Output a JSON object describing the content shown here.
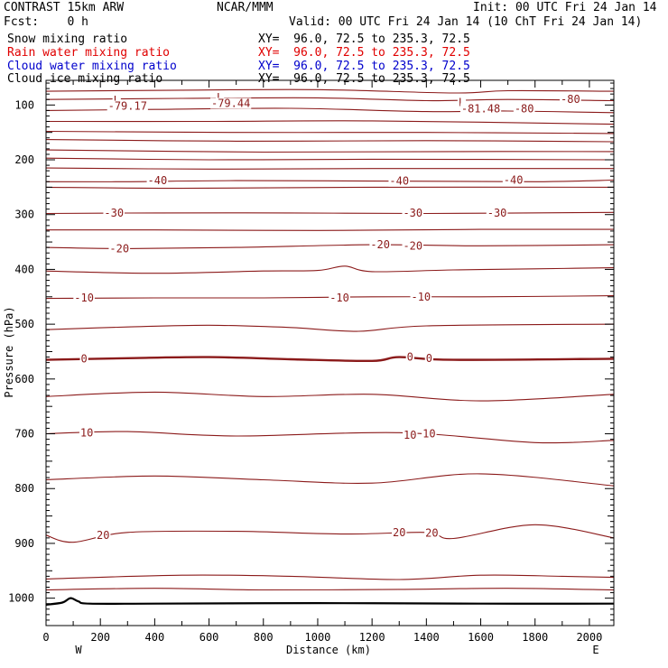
{
  "header": {
    "model": "CONTRAST 15km ARW",
    "org": "NCAR/MMM",
    "init": "Init: 00 UTC Fri 24 Jan 14",
    "fcst": "Fcst:    0 h",
    "valid": "Valid: 00 UTC Fri 24 Jan 14 (10 ChT Fri 24 Jan 14)"
  },
  "legend": [
    {
      "name": "Snow mixing ratio",
      "xy": "XY=  96.0, 72.5 to 235.3, 72.5",
      "color": "#000000"
    },
    {
      "name": "Rain water mixing ratio",
      "xy": "XY=  96.0, 72.5 to 235.3, 72.5",
      "color": "#e00000"
    },
    {
      "name": "Cloud water mixing ratio",
      "xy": "XY=  96.0, 72.5 to 235.3, 72.5",
      "color": "#0000cc"
    },
    {
      "name": "Cloud ice mixing ratio",
      "xy": "XY=  96.0, 72.5 to 235.3, 72.5",
      "color": "#000000"
    }
  ],
  "chart_data": {
    "type": "line",
    "description_kind": "cross-section temperature contours",
    "xlabel": "Distance (km)",
    "ylabel": "Pressure (hPa)",
    "xlim": [
      0,
      2090
    ],
    "ylim": [
      1050,
      55
    ],
    "x_ticks": [
      "0",
      "200",
      "400",
      "600",
      "800",
      "1000",
      "1200",
      "1400",
      "1600",
      "1800",
      "2000"
    ],
    "x_tick_values": [
      0,
      200,
      400,
      600,
      800,
      1000,
      1200,
      1400,
      1600,
      1800,
      2000
    ],
    "y_ticks": [
      "100",
      "200",
      "300",
      "400",
      "500",
      "600",
      "700",
      "800",
      "900",
      "1000"
    ],
    "y_tick_values": [
      100,
      200,
      300,
      400,
      500,
      600,
      700,
      800,
      900,
      1000
    ],
    "endpoint_left": "W",
    "endpoint_right": "E",
    "contour_color": "#8b1a1a",
    "ground_color": "#000000",
    "contours": [
      {
        "level": -80,
        "x": [
          0,
          500,
          1000,
          1500,
          1700,
          2090
        ],
        "p": [
          75,
          73,
          72,
          78,
          74,
          75
        ]
      },
      {
        "level": -80,
        "x": [
          0,
          500,
          1000,
          1400,
          1700,
          2090
        ],
        "p": [
          90,
          88,
          87,
          92,
          90,
          92
        ]
      },
      {
        "level": -80,
        "x": [
          0,
          400,
          900,
          1400,
          1700,
          2090
        ],
        "p": [
          110,
          108,
          106,
          112,
          111,
          114
        ]
      },
      {
        "level": -70,
        "x": [
          0,
          600,
          1200,
          2090
        ],
        "p": [
          130,
          130,
          129,
          135
        ]
      },
      {
        "level": -60,
        "x": [
          0,
          700,
          1400,
          2090
        ],
        "p": [
          148,
          150,
          150,
          152
        ]
      },
      {
        "level": -60,
        "x": [
          0,
          700,
          1400,
          2090
        ],
        "p": [
          163,
          166,
          165,
          167
        ]
      },
      {
        "level": -60,
        "x": [
          0,
          800,
          1500,
          2090
        ],
        "p": [
          182,
          186,
          185,
          185
        ]
      },
      {
        "level": -50,
        "x": [
          0,
          600,
          1200,
          2090
        ],
        "p": [
          197,
          200,
          199,
          200
        ]
      },
      {
        "level": -50,
        "x": [
          0,
          600,
          1200,
          2090
        ],
        "p": [
          215,
          217,
          216,
          216
        ]
      },
      {
        "level": -40,
        "x": [
          0,
          300,
          700,
          1300,
          1800,
          2090
        ],
        "p": [
          240,
          240,
          238,
          239,
          240,
          237
        ]
      },
      {
        "level": -40,
        "x": [
          0,
          500,
          1200,
          2090
        ],
        "p": [
          250,
          252,
          250,
          250
        ]
      },
      {
        "level": -30,
        "x": [
          0,
          400,
          900,
          1400,
          2090
        ],
        "p": [
          298,
          297,
          297,
          298,
          296
        ]
      },
      {
        "level": -30,
        "x": [
          0,
          400,
          1000,
          1600,
          2090
        ],
        "p": [
          328,
          328,
          329,
          327,
          327
        ]
      },
      {
        "level": -20,
        "x": [
          0,
          300,
          700,
          1200,
          1600,
          2090
        ],
        "p": [
          360,
          362,
          360,
          355,
          357,
          355
        ]
      },
      {
        "level": -20,
        "x": [
          0,
          400,
          800,
          1000,
          1100,
          1200,
          1500,
          1800,
          2090
        ],
        "p": [
          403,
          407,
          403,
          402,
          394,
          404,
          401,
          399,
          397
        ]
      },
      {
        "level": -10,
        "x": [
          0,
          400,
          800,
          1200,
          1600,
          2090
        ],
        "p": [
          453,
          452,
          452,
          450,
          450,
          448
        ]
      },
      {
        "level": -10,
        "x": [
          0,
          300,
          600,
          900,
          1150,
          1400,
          2090
        ],
        "p": [
          510,
          505,
          502,
          506,
          513,
          503,
          500
        ]
      },
      {
        "level": 0,
        "x": [
          0,
          300,
          600,
          900,
          1200,
          1300,
          1500,
          2090
        ],
        "p": [
          565,
          562,
          560,
          564,
          567,
          560,
          565,
          563
        ],
        "bold": true
      },
      {
        "level": 0,
        "x": [
          0,
          400,
          800,
          1200,
          1600,
          2090
        ],
        "p": [
          632,
          624,
          632,
          628,
          640,
          628
        ]
      },
      {
        "level": 10,
        "x": [
          0,
          300,
          700,
          1300,
          1800,
          2090
        ],
        "p": [
          700,
          696,
          704,
          698,
          716,
          712
        ]
      },
      {
        "level": 10,
        "x": [
          0,
          400,
          800,
          1200,
          1600,
          2090
        ],
        "p": [
          784,
          777,
          784,
          790,
          773,
          795
        ]
      },
      {
        "level": 20,
        "x": [
          0,
          100,
          300,
          700,
          1100,
          1400,
          1500,
          1800,
          2090
        ],
        "p": [
          885,
          898,
          880,
          878,
          883,
          880,
          891,
          866,
          890
        ]
      },
      {
        "level": 20,
        "x": [
          0,
          500,
          900,
          1300,
          1600,
          1900,
          2090
        ],
        "p": [
          965,
          958,
          960,
          966,
          958,
          960,
          962
        ]
      },
      {
        "level": 25,
        "x": [
          0,
          400,
          800,
          1300,
          1700,
          2090
        ],
        "p": [
          985,
          982,
          985,
          984,
          982,
          985
        ]
      }
    ],
    "ground": {
      "x": [
        0,
        60,
        90,
        120,
        160,
        400,
        1000,
        1600,
        2090
      ],
      "p": [
        1012,
        1008,
        1000,
        1006,
        1010,
        1010,
        1009,
        1010,
        1010
      ]
    },
    "labels": [
      {
        "text": "L",
        "x": 260,
        "p": 91
      },
      {
        "text": "-79.17",
        "x": 300,
        "p": 102
      },
      {
        "text": "L",
        "x": 640,
        "p": 86
      },
      {
        "text": "-79.44",
        "x": 680,
        "p": 97
      },
      {
        "text": "L",
        "x": 1530,
        "p": 95
      },
      {
        "text": "-81.48",
        "x": 1600,
        "p": 107
      },
      {
        "text": "-80",
        "x": 1760,
        "p": 107
      },
      {
        "text": "-80",
        "x": 1930,
        "p": 90
      },
      {
        "text": "-40",
        "x": 410,
        "p": 238
      },
      {
        "text": "-40",
        "x": 1300,
        "p": 239
      },
      {
        "text": "-40",
        "x": 1720,
        "p": 237
      },
      {
        "text": "-30",
        "x": 250,
        "p": 297
      },
      {
        "text": "-30",
        "x": 1350,
        "p": 297
      },
      {
        "text": "-30",
        "x": 1660,
        "p": 297
      },
      {
        "text": "-20",
        "x": 270,
        "p": 362
      },
      {
        "text": "-20",
        "x": 1230,
        "p": 355
      },
      {
        "text": "-20",
        "x": 1350,
        "p": 357
      },
      {
        "text": "-10",
        "x": 140,
        "p": 452
      },
      {
        "text": "-10",
        "x": 1080,
        "p": 452
      },
      {
        "text": "-10",
        "x": 1380,
        "p": 450
      },
      {
        "text": "0",
        "x": 140,
        "p": 563
      },
      {
        "text": "0",
        "x": 1340,
        "p": 560
      },
      {
        "text": "0",
        "x": 1410,
        "p": 562
      },
      {
        "text": "10",
        "x": 150,
        "p": 698
      },
      {
        "text": "10",
        "x": 1340,
        "p": 702
      },
      {
        "text": "10",
        "x": 1410,
        "p": 700
      },
      {
        "text": "20",
        "x": 210,
        "p": 885
      },
      {
        "text": "20",
        "x": 1300,
        "p": 880
      },
      {
        "text": "20",
        "x": 1420,
        "p": 881
      }
    ]
  }
}
